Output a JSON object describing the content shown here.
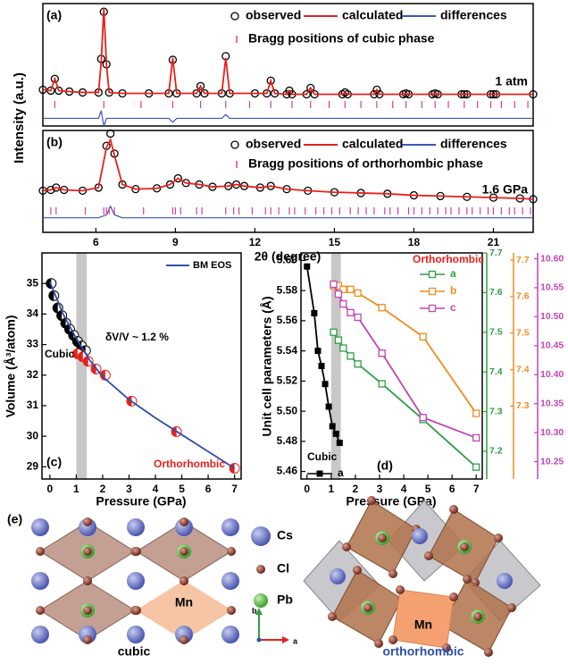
{
  "chart_data": [
    {
      "type": "line",
      "panel_label": "(a)",
      "ylabel": "Intensity (a.u.)",
      "annotation": "1 atm",
      "xlim": [
        4,
        22.5
      ],
      "ylim": [
        -30,
        105
      ],
      "y2lim": [
        -4,
        60
      ],
      "x": [
        4.0,
        4.3,
        4.45,
        4.6,
        5.0,
        5.5,
        6.1,
        6.2,
        6.3,
        6.4,
        6.5,
        7.0,
        8.0,
        8.75,
        8.9,
        9.05,
        9.8,
        9.95,
        10.1,
        10.75,
        10.9,
        11.05,
        12.0,
        12.45,
        12.6,
        12.75,
        13.2,
        13.3,
        13.4,
        13.95,
        14.1,
        14.25,
        15.3,
        15.4,
        15.5,
        16.5,
        16.6,
        16.7,
        17.6,
        17.7,
        17.8,
        18.7,
        18.8,
        18.9,
        19.8,
        19.9,
        20.0,
        20.9,
        21.0,
        21.1,
        22.5
      ],
      "series": [
        {
          "name": "observed",
          "color": "#000000",
          "style": "marker",
          "values": [
            10,
            9,
            22,
            9,
            8,
            7,
            7,
            44,
            96,
            38,
            7,
            6,
            6,
            6,
            43,
            6,
            6,
            14,
            6,
            6,
            47,
            6,
            6,
            6,
            20,
            6,
            5,
            9,
            5,
            5,
            12,
            5,
            5,
            7,
            5,
            5,
            10,
            5,
            5,
            6,
            5,
            5,
            6,
            5,
            5,
            5,
            5,
            5,
            5,
            5,
            5
          ]
        },
        {
          "name": "calculated",
          "color": "#e8201c",
          "style": "line",
          "values": [
            10,
            9,
            22,
            9,
            8,
            7,
            7,
            40,
            100,
            38,
            7,
            6,
            6,
            6,
            45,
            6,
            6,
            14,
            6,
            6,
            45,
            6,
            6,
            6,
            20,
            6,
            5,
            9,
            5,
            5,
            12,
            5,
            5,
            7,
            5,
            5,
            10,
            5,
            5,
            6,
            5,
            5,
            6,
            5,
            5,
            5,
            5,
            5,
            5,
            5,
            5
          ]
        },
        {
          "name": "differences",
          "color": "#3a56b8",
          "style": "line",
          "axis": "y2",
          "values": [
            0,
            0,
            0,
            0,
            0,
            0,
            0,
            4,
            -4,
            0,
            0,
            0,
            0,
            0,
            -2,
            0,
            0,
            0,
            0,
            0,
            2,
            0,
            0,
            0,
            0,
            0,
            0,
            0,
            0,
            0,
            0,
            0,
            0,
            0,
            0,
            0,
            0,
            0,
            0,
            0,
            0,
            0,
            0,
            0,
            0,
            0,
            0,
            0,
            0,
            0,
            0
          ]
        }
      ],
      "bragg_positions": {
        "name": "Bragg positions of cubic phase",
        "color": "#d0409a",
        "x": [
          4.45,
          6.3,
          7.7,
          8.9,
          9.95,
          10.9,
          11.8,
          12.6,
          13.4,
          14.1,
          14.8,
          15.4,
          16.0,
          16.6,
          17.2,
          17.7,
          18.3,
          18.8,
          19.3,
          19.9,
          20.4,
          20.9,
          21.3,
          21.8,
          22.3
        ]
      }
    },
    {
      "type": "line",
      "panel_label": "(b)",
      "xlabel": "2θ (degree)",
      "annotation": "1.6 GPa",
      "xlim": [
        4,
        22.5
      ],
      "ylim": [
        -40,
        92
      ],
      "y2lim": [
        -10,
        60
      ],
      "xticks": [
        6,
        9,
        12,
        15,
        18,
        21
      ],
      "x": [
        4.0,
        4.3,
        4.5,
        4.8,
        5.5,
        6.1,
        6.4,
        6.55,
        6.7,
        7.0,
        7.5,
        8.3,
        8.8,
        9.1,
        9.4,
        9.9,
        10.4,
        11.0,
        11.3,
        11.6,
        12.2,
        12.6,
        13.2,
        14.0,
        15.0,
        16.0,
        17.0,
        18.0,
        19.0,
        20.0,
        21.0,
        22.0,
        22.5
      ],
      "series": [
        {
          "name": "observed",
          "color": "#000000",
          "style": "marker",
          "values": [
            14,
            15,
            18,
            15,
            14,
            18,
            72,
            88,
            62,
            22,
            16,
            17,
            22,
            30,
            24,
            22,
            19,
            20,
            22,
            20,
            18,
            20,
            16,
            14,
            12,
            11,
            10,
            8,
            7,
            6,
            5,
            4,
            3
          ]
        },
        {
          "name": "calculated",
          "color": "#e8201c",
          "style": "line",
          "values": [
            14,
            15,
            18,
            15,
            14,
            18,
            70,
            80,
            60,
            22,
            16,
            17,
            22,
            30,
            24,
            22,
            19,
            20,
            22,
            20,
            18,
            20,
            16,
            14,
            12,
            11,
            10,
            8,
            7,
            6,
            5,
            4,
            3
          ]
        },
        {
          "name": "differences",
          "color": "#3a56b8",
          "style": "line",
          "axis": "y2",
          "values": [
            0,
            0,
            0,
            0,
            0,
            0,
            2,
            8,
            2,
            0,
            0,
            0,
            0,
            0,
            0,
            0,
            0,
            0,
            0,
            0,
            0,
            0,
            0,
            0,
            0,
            0,
            0,
            0,
            0,
            0,
            0,
            0,
            0
          ]
        }
      ],
      "bragg_positions": {
        "name": "Bragg positions of orthorhombic phase",
        "color": "#d0409a",
        "x": [
          4.3,
          4.5,
          5.6,
          6.3,
          6.4,
          6.5,
          6.7,
          7.8,
          8.9,
          9.0,
          9.2,
          9.8,
          10.0,
          10.9,
          11.2,
          11.4,
          11.9,
          12.4,
          12.6,
          12.9,
          13.3,
          13.5,
          13.9,
          14.3,
          14.6,
          14.9,
          15.2,
          15.6,
          15.9,
          16.2,
          16.5,
          16.9,
          17.1,
          17.4,
          17.8,
          18.0,
          18.3,
          18.6,
          18.9,
          19.2,
          19.4,
          19.7,
          20.0,
          20.2,
          20.5,
          20.8,
          21.0,
          21.3,
          21.6,
          21.8,
          22.1,
          22.4
        ]
      }
    },
    {
      "type": "scatter",
      "panel_label": "(c)",
      "xlabel": "Pressure (GPa)",
      "ylabel": "Volume (Å³/atom)",
      "annotation": "δV/V ~ 1.2 %",
      "xlim": [
        -0.3,
        7.25
      ],
      "ylim": [
        28.6,
        36
      ],
      "xticks": [
        0,
        1,
        2,
        3,
        4,
        5,
        6,
        7
      ],
      "yticks": [
        29,
        30,
        31,
        32,
        33,
        34,
        35
      ],
      "highlight_x": [
        1.0,
        1.4
      ],
      "series": [
        {
          "name": "Cubic",
          "color": "#000000",
          "style": "marker",
          "marker": "half-circle",
          "x": [
            0.05,
            0.15,
            0.3,
            0.45,
            0.6,
            0.75,
            0.9,
            1.05,
            1.2,
            1.35
          ],
          "values": [
            35.0,
            34.6,
            34.2,
            33.95,
            33.7,
            33.5,
            33.3,
            33.1,
            32.95,
            32.8
          ]
        },
        {
          "name": "Orthorhombic",
          "color": "#e8201c",
          "style": "marker",
          "marker": "half-circle",
          "x": [
            1.05,
            1.25,
            1.45,
            1.75,
            2.1,
            3.1,
            4.8,
            7.0
          ],
          "values": [
            32.7,
            32.6,
            32.45,
            32.2,
            32.0,
            31.15,
            30.15,
            28.95
          ]
        },
        {
          "name": "BM EOS",
          "color": "#2f4fa8",
          "style": "line",
          "x": [
            0,
            0.5,
            1,
            1.5,
            2,
            3,
            4,
            5,
            6,
            7
          ],
          "values": [
            35.05,
            34.0,
            33.2,
            32.5,
            31.95,
            31.2,
            30.6,
            30.05,
            29.5,
            28.95
          ]
        }
      ]
    },
    {
      "type": "line",
      "panel_label": "(d)",
      "xlabel": "Pressure (GPa)",
      "ylabel": "Unit cell parameters (Å)",
      "annotations": [
        "Cubic",
        "Orthorhombic"
      ],
      "xlim": [
        -0.25,
        7.25
      ],
      "xticks": [
        0,
        1,
        2,
        3,
        4,
        5,
        6,
        7
      ],
      "ylim": [
        5.455,
        5.605
      ],
      "yticks": [
        5.46,
        5.48,
        {
          "value": 5.5,
          "label": "5.50"
        },
        5.52,
        5.54,
        5.56,
        5.58,
        {
          "value": 5.6,
          "label": "5.60"
        }
      ],
      "y2lim": [
        7.13,
        7.7
      ],
      "y2ticks": [
        7.2,
        7.3,
        7.4,
        7.5,
        7.6,
        7.7
      ],
      "y3lim": [
        7.1,
        7.72
      ],
      "y3ticks": [
        7.3,
        7.4,
        7.5,
        7.6,
        7.7
      ],
      "y4lim": [
        10.22,
        10.61
      ],
      "y4ticks": [
        10.25,
        {
          "value": 10.3,
          "label": "10.30"
        },
        10.35,
        {
          "value": 10.4,
          "label": "10.40"
        },
        10.45,
        {
          "value": 10.5,
          "label": "10.50"
        },
        10.55,
        {
          "value": 10.6,
          "label": "10.60"
        }
      ],
      "highlight_x": [
        1.0,
        1.4
      ],
      "series": [
        {
          "name": "a",
          "color": "#000000",
          "style": "line+marker",
          "marker": "square-filled",
          "x": [
            0,
            0.3,
            0.45,
            0.6,
            0.75,
            0.9,
            1.05,
            1.2,
            1.35
          ],
          "values": [
            5.596,
            5.565,
            5.54,
            5.53,
            5.518,
            5.503,
            5.49,
            5.485,
            5.479
          ]
        },
        {
          "name": "a",
          "color": "#2e9e44",
          "style": "line+marker",
          "marker": "square-open",
          "axis": "y2",
          "x": [
            1.1,
            1.3,
            1.5,
            1.8,
            2.1,
            3.1,
            4.8,
            7.0
          ],
          "values": [
            7.5,
            7.48,
            7.46,
            7.44,
            7.42,
            7.37,
            7.28,
            7.16
          ]
        },
        {
          "name": "b",
          "color": "#f28c1e",
          "style": "line+marker",
          "marker": "square-open",
          "axis": "y3",
          "x": [
            1.1,
            1.3,
            1.5,
            1.8,
            2.1,
            3.1,
            4.8,
            7.0
          ],
          "values": [
            7.63,
            7.63,
            7.62,
            7.62,
            7.61,
            7.57,
            7.49,
            7.28
          ]
        },
        {
          "name": "c",
          "color": "#c044b4",
          "style": "line+marker",
          "marker": "square-open",
          "axis": "y4",
          "x": [
            1.1,
            1.3,
            1.5,
            1.8,
            2.1,
            3.1,
            4.8,
            7.0
          ],
          "values": [
            10.556,
            10.539,
            10.522,
            10.507,
            10.499,
            10.437,
            10.326,
            10.291
          ]
        }
      ]
    }
  ],
  "structures": {
    "panel_label": "(e)",
    "legend": [
      "Cs",
      "Cl",
      "Pb"
    ],
    "cubic": {
      "label": "cubic",
      "dopant": "Mn"
    },
    "orthorhombic": {
      "label": "orthorhombic",
      "dopant": "Mn"
    },
    "axes": [
      "b",
      "a"
    ]
  }
}
